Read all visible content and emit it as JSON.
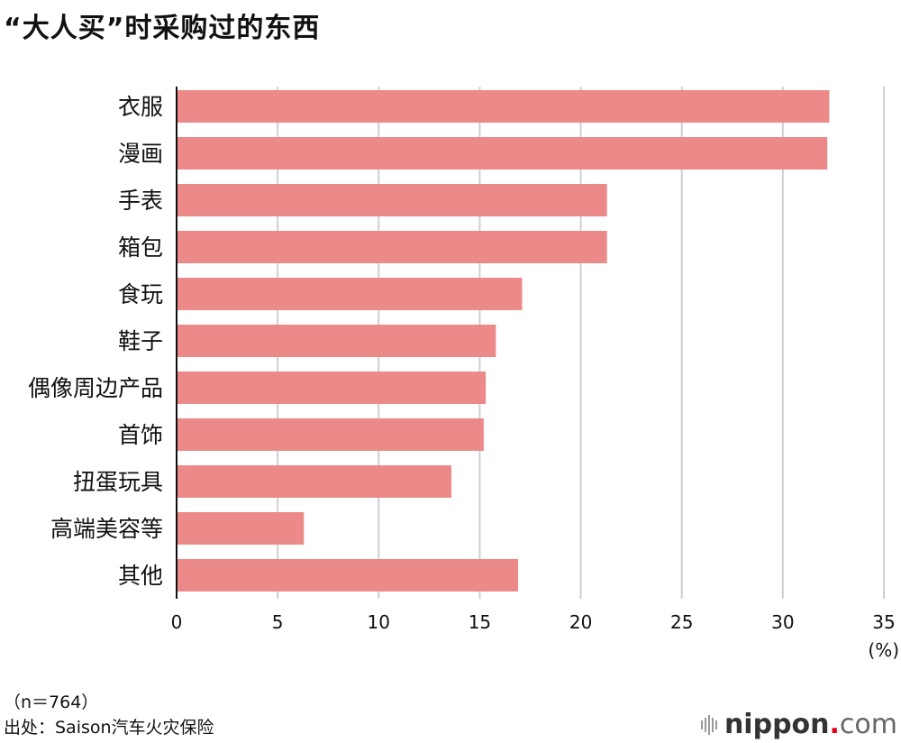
{
  "chart_data": {
    "type": "bar",
    "orientation": "horizontal",
    "title": "“大人买”时采购过的东西",
    "categories": [
      "衣服",
      "漫画",
      "手表",
      "箱包",
      "食玩",
      "鞋子",
      "偶像周边产品",
      "首饰",
      "扭蛋玩具",
      "高端美容等",
      "其他"
    ],
    "values": [
      32.3,
      32.2,
      21.3,
      21.3,
      17.1,
      15.8,
      15.3,
      15.2,
      13.6,
      6.3,
      16.9
    ],
    "xlim": [
      0,
      35
    ],
    "xticks": [
      "0",
      "5",
      "10",
      "15",
      "20",
      "25",
      "30",
      "35"
    ],
    "xlabel": "(%)",
    "grid": true,
    "bar_color": "#eb8a89"
  },
  "footer": {
    "note": "（n＝764）",
    "source": "出处：Saison汽车火灾保险",
    "logo": {
      "name": "nippon",
      "dot": ".",
      "suffix": "com",
      "accent": "#e0001b"
    }
  }
}
